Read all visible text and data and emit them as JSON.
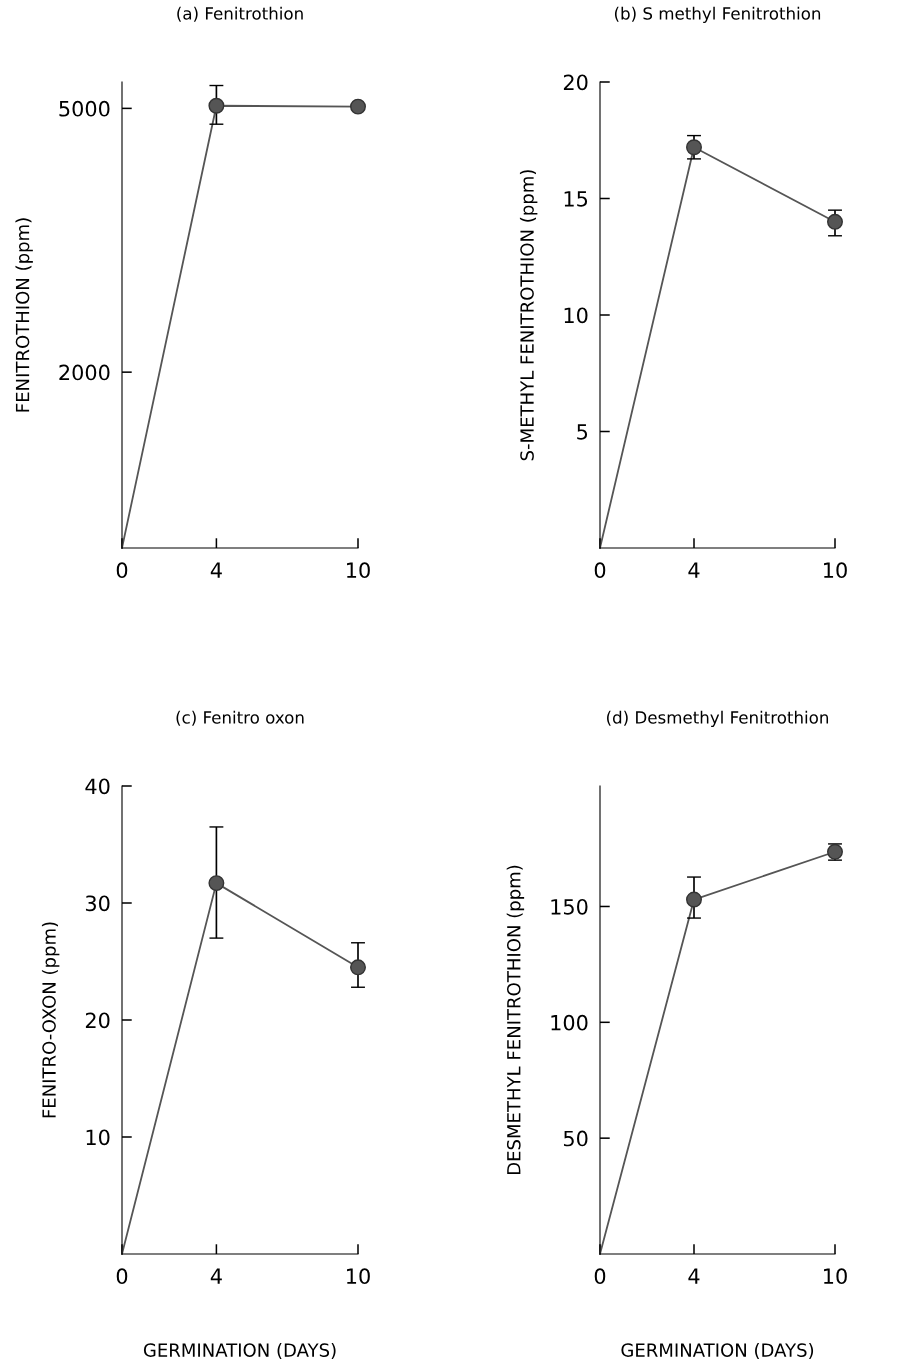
{
  "chart_data": [
    {
      "type": "line",
      "title": "(a) Fenitrothion",
      "ylabel": "FENITROTHION (ppm)",
      "x": [
        0,
        4,
        10
      ],
      "values": [
        0,
        5030,
        5020
      ],
      "errors": [
        null,
        [
          4820,
          5260
        ],
        null
      ],
      "color": "#555555",
      "marker": "circle",
      "xlim": [
        0,
        10
      ],
      "xticks": [
        0,
        4,
        10
      ],
      "ylim": [
        0,
        5300
      ],
      "yticks": [
        2000,
        5000
      ]
    },
    {
      "type": "line",
      "title": "(b) S methyl Fenitrothion",
      "ylabel": "S-METHYL FENITROTHION (ppm)",
      "x": [
        0,
        4,
        10
      ],
      "values": [
        0,
        17.2,
        14.0
      ],
      "errors": [
        null,
        [
          16.7,
          17.7
        ],
        [
          13.4,
          14.5
        ]
      ],
      "color": "#555555",
      "marker": "circle",
      "xlim": [
        0,
        10
      ],
      "xticks": [
        0,
        4,
        10
      ],
      "ylim": [
        0,
        20
      ],
      "yticks": [
        5,
        10,
        15,
        20
      ]
    },
    {
      "type": "line",
      "title": "(c) Fenitro oxon",
      "ylabel": "FENITRO-OXON (ppm)",
      "xlabel": "GERMINATION (DAYS)",
      "x": [
        0,
        4,
        10
      ],
      "values": [
        0,
        31.7,
        24.5
      ],
      "errors": [
        null,
        [
          27.0,
          36.5
        ],
        [
          22.8,
          26.6
        ]
      ],
      "color": "#555555",
      "marker": "circle",
      "xlim": [
        0,
        10
      ],
      "xticks": [
        0,
        4,
        10
      ],
      "ylim": [
        0,
        40
      ],
      "yticks": [
        10,
        20,
        30,
        40
      ]
    },
    {
      "type": "line",
      "title": "(d) Desmethyl Fenitrothion",
      "ylabel": "DESMETHYL FENITROTHION (ppm)",
      "xlabel": "GERMINATION (DAYS)",
      "x": [
        0,
        4,
        10
      ],
      "values": [
        0,
        153,
        173.6
      ],
      "errors": [
        null,
        [
          145,
          162.7
        ],
        [
          170,
          177
        ]
      ],
      "color": "#555555",
      "marker": "circle",
      "xlim": [
        0,
        10
      ],
      "xticks": [
        0,
        4,
        10
      ],
      "ylim": [
        0,
        202
      ],
      "yticks": [
        50,
        100,
        150
      ]
    }
  ]
}
